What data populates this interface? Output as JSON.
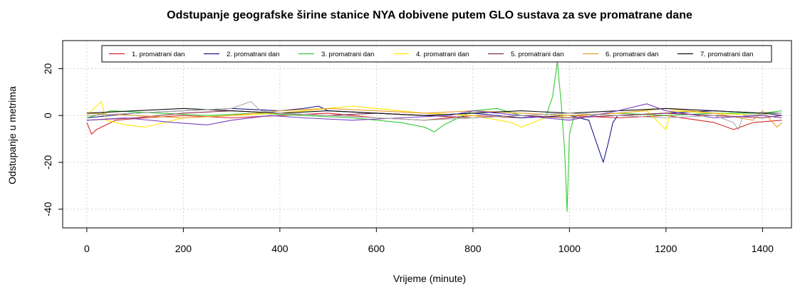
{
  "chart_data": {
    "type": "line",
    "title": "Odstupanje geografske širine stanice NYA dobivene putem GLO sustava za sve promatrane dane",
    "xlabel": "Vrijeme (minute)",
    "ylabel": "Odstupanje u metrima",
    "xlim": [
      -50,
      1460
    ],
    "ylim": [
      -48,
      32
    ],
    "x_ticks": [
      0,
      200,
      400,
      600,
      800,
      1000,
      1200,
      1400
    ],
    "y_ticks": [
      -40,
      -20,
      0,
      20
    ],
    "grid": true,
    "legend_position": "top",
    "series": [
      {
        "name": "1. promatrani dan",
        "color": "#d7262b",
        "points": [
          [
            0,
            -3
          ],
          [
            10,
            -8
          ],
          [
            20,
            -6
          ],
          [
            60,
            -2
          ],
          [
            120,
            -1
          ],
          [
            200,
            0
          ],
          [
            300,
            -1
          ],
          [
            400,
            0
          ],
          [
            500,
            1
          ],
          [
            600,
            -1
          ],
          [
            700,
            -2
          ],
          [
            800,
            0
          ],
          [
            900,
            -1
          ],
          [
            1000,
            0
          ],
          [
            1100,
            -1
          ],
          [
            1200,
            0
          ],
          [
            1300,
            -3
          ],
          [
            1340,
            -6
          ],
          [
            1380,
            -3
          ],
          [
            1440,
            -2
          ]
        ]
      },
      {
        "name": "2. promatrani dan",
        "color": "#1a1a8c",
        "points": [
          [
            0,
            -1
          ],
          [
            100,
            1
          ],
          [
            200,
            2
          ],
          [
            300,
            3
          ],
          [
            400,
            2
          ],
          [
            450,
            3
          ],
          [
            480,
            4
          ],
          [
            500,
            2
          ],
          [
            600,
            1
          ],
          [
            700,
            0
          ],
          [
            800,
            1
          ],
          [
            900,
            -1
          ],
          [
            1000,
            0
          ],
          [
            1040,
            -2
          ],
          [
            1050,
            -8
          ],
          [
            1060,
            -14
          ],
          [
            1070,
            -20
          ],
          [
            1080,
            -12
          ],
          [
            1090,
            -3
          ],
          [
            1100,
            0
          ],
          [
            1200,
            1
          ],
          [
            1300,
            2
          ],
          [
            1400,
            1
          ],
          [
            1440,
            0
          ]
        ]
      },
      {
        "name": "3. promatrani dan",
        "color": "#33cc33",
        "points": [
          [
            0,
            -1
          ],
          [
            50,
            2
          ],
          [
            150,
            1
          ],
          [
            250,
            0
          ],
          [
            350,
            1
          ],
          [
            450,
            0
          ],
          [
            550,
            -1
          ],
          [
            650,
            -3
          ],
          [
            700,
            -5
          ],
          [
            720,
            -7
          ],
          [
            740,
            -4
          ],
          [
            800,
            2
          ],
          [
            850,
            3
          ],
          [
            900,
            0
          ],
          [
            950,
            -1
          ],
          [
            965,
            8
          ],
          [
            975,
            23
          ],
          [
            983,
            5
          ],
          [
            990,
            -15
          ],
          [
            995,
            -41
          ],
          [
            1000,
            -8
          ],
          [
            1010,
            0
          ],
          [
            1100,
            1
          ],
          [
            1200,
            0
          ],
          [
            1300,
            1
          ],
          [
            1400,
            1
          ],
          [
            1440,
            2
          ]
        ]
      },
      {
        "name": "4. promatrani dan",
        "color": "#ffe600",
        "points": [
          [
            0,
            0
          ],
          [
            30,
            6
          ],
          [
            40,
            -2
          ],
          [
            80,
            -4
          ],
          [
            120,
            -5
          ],
          [
            160,
            -3
          ],
          [
            200,
            -1
          ],
          [
            300,
            0
          ],
          [
            400,
            1
          ],
          [
            500,
            3
          ],
          [
            550,
            4
          ],
          [
            600,
            3
          ],
          [
            700,
            1
          ],
          [
            800,
            0
          ],
          [
            880,
            -3
          ],
          [
            900,
            -5
          ],
          [
            950,
            -1
          ],
          [
            1000,
            0
          ],
          [
            1100,
            1
          ],
          [
            1160,
            2
          ],
          [
            1200,
            -6
          ],
          [
            1210,
            2
          ],
          [
            1300,
            1
          ],
          [
            1400,
            0
          ],
          [
            1440,
            -1
          ]
        ]
      },
      {
        "name": "5. promatrani dan",
        "color": "#8a2b4b",
        "points": [
          [
            0,
            -2
          ],
          [
            100,
            -1
          ],
          [
            200,
            1
          ],
          [
            300,
            2
          ],
          [
            400,
            1
          ],
          [
            500,
            0
          ],
          [
            600,
            1
          ],
          [
            700,
            0
          ],
          [
            800,
            -1
          ],
          [
            900,
            0
          ],
          [
            1000,
            -1
          ],
          [
            1100,
            0
          ],
          [
            1200,
            1
          ],
          [
            1300,
            0
          ],
          [
            1400,
            -1
          ],
          [
            1440,
            0
          ]
        ]
      },
      {
        "name": "6. promatrani dan",
        "color": "#e89a28",
        "points": [
          [
            0,
            1
          ],
          [
            100,
            0
          ],
          [
            200,
            -1
          ],
          [
            300,
            0
          ],
          [
            400,
            2
          ],
          [
            500,
            3
          ],
          [
            600,
            2
          ],
          [
            700,
            1
          ],
          [
            800,
            2
          ],
          [
            900,
            1
          ],
          [
            1000,
            0
          ],
          [
            1100,
            1
          ],
          [
            1200,
            3
          ],
          [
            1300,
            1
          ],
          [
            1380,
            -2
          ],
          [
            1400,
            2
          ],
          [
            1430,
            -5
          ],
          [
            1440,
            -3
          ]
        ]
      },
      {
        "name": "7. promatrani dan",
        "color": "#111111",
        "points": [
          [
            0,
            1
          ],
          [
            100,
            2
          ],
          [
            200,
            3
          ],
          [
            300,
            2
          ],
          [
            400,
            1
          ],
          [
            500,
            2
          ],
          [
            600,
            1
          ],
          [
            700,
            0
          ],
          [
            800,
            1
          ],
          [
            900,
            2
          ],
          [
            1000,
            1
          ],
          [
            1100,
            2
          ],
          [
            1200,
            3
          ],
          [
            1300,
            2
          ],
          [
            1400,
            1
          ],
          [
            1440,
            1
          ]
        ]
      },
      {
        "name": "",
        "color": "#7b3fc4",
        "points": [
          [
            0,
            -2
          ],
          [
            80,
            -1
          ],
          [
            180,
            -3
          ],
          [
            250,
            -4
          ],
          [
            300,
            -2
          ],
          [
            380,
            0
          ],
          [
            450,
            -1
          ],
          [
            550,
            -2
          ],
          [
            650,
            -1
          ],
          [
            750,
            0
          ],
          [
            800,
            2
          ],
          [
            900,
            0
          ],
          [
            1000,
            -2
          ],
          [
            1050,
            0
          ],
          [
            1100,
            2
          ],
          [
            1160,
            5
          ],
          [
            1200,
            2
          ],
          [
            1300,
            -1
          ],
          [
            1400,
            0
          ],
          [
            1440,
            -1
          ]
        ]
      },
      {
        "name": "",
        "color": "#a9a9a9",
        "points": [
          [
            0,
            0
          ],
          [
            100,
            1
          ],
          [
            200,
            2
          ],
          [
            300,
            3
          ],
          [
            340,
            6
          ],
          [
            360,
            2
          ],
          [
            400,
            1
          ],
          [
            500,
            0
          ],
          [
            600,
            -1
          ],
          [
            700,
            -2
          ],
          [
            800,
            -1
          ],
          [
            900,
            0
          ],
          [
            1000,
            1
          ],
          [
            1100,
            0
          ],
          [
            1200,
            -1
          ],
          [
            1300,
            0
          ],
          [
            1340,
            -3
          ],
          [
            1350,
            -6
          ],
          [
            1360,
            0
          ],
          [
            1440,
            1
          ]
        ]
      }
    ]
  }
}
